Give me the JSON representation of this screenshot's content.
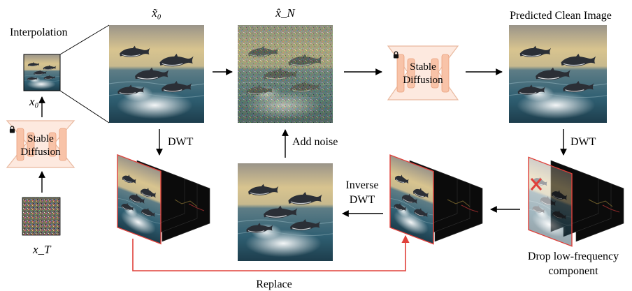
{
  "labels": {
    "interpolation": "Interpolation",
    "x0": "x₀",
    "xT": "x_T",
    "x_tilde_0": "x̃₀",
    "x_hat_N": "x̂_N",
    "predicted": "Predicted Clean Image",
    "dwt_left": "DWT",
    "dwt_right": "DWT",
    "add_noise": "Add noise",
    "inverse": "Inverse",
    "inverse_dwt": "DWT",
    "drop_line1": "Drop low-frequency",
    "drop_line2": "component",
    "replace": "Replace"
  },
  "model_blocks": [
    {
      "line1": "Stable",
      "line2": "Diffusion"
    },
    {
      "line1": "Stable",
      "line2": "Diffusion"
    }
  ],
  "icons": {
    "lock": "lock-icon",
    "drop_mark": "red-x-icon"
  },
  "colors": {
    "replace_arrow": "#e0403a",
    "model_block_fill": "#fde9df",
    "model_block_stroke": "#e9b99f",
    "sea": "#2f5f72",
    "sky": "#d8c48f"
  }
}
